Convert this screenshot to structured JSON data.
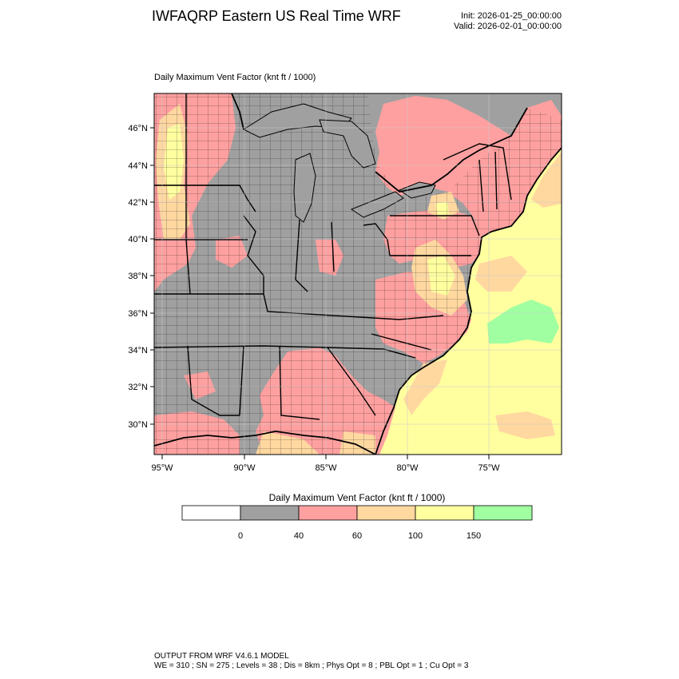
{
  "header": {
    "title": "IWFAQRP Eastern US Real Time WRF",
    "init": "Init: 2026-01-25_00:00:00",
    "valid": "Valid: 2026-02-01_00:00:00"
  },
  "plot": {
    "subtitle": "Daily Maximum Vent Factor   (knt ft / 1000)",
    "lat_labels": [
      "46°N",
      "44°N",
      "42°N",
      "40°N",
      "38°N",
      "36°N",
      "34°N",
      "32°N",
      "30°N"
    ],
    "lon_labels": [
      "95°W",
      "90°W",
      "85°W",
      "80°W",
      "75°W"
    ]
  },
  "colorbar": {
    "title": "Daily Maximum Vent Factor  (knt ft / 1000)",
    "colors": [
      "#ffffff",
      "#a0a0a0",
      "#ffa0a0",
      "#ffd8a0",
      "#ffffa0",
      "#a0ffa0"
    ],
    "tick_labels": [
      "0",
      "40",
      "60",
      "100",
      "150"
    ]
  },
  "footer": {
    "line1": "OUTPUT FROM WRF V4.6.1 MODEL",
    "line2": "WE = 310 ; SN = 275 ; Levels = 38 ; Dis = 8km ; Phys Opt = 8 ; PBL Opt = 1 ; Cu Opt = 3"
  }
}
